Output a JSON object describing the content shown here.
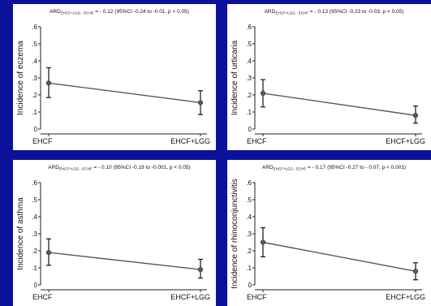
{
  "chart_data": [
    {
      "type": "line",
      "title": "ARD EHCF+LGG - ECHF = - 0.12 (95%CI -0.24 to -0.01, p < 0.05)",
      "annotation": {
        "ard_label": "ARD",
        "ard_subscript": "EHCF+LGG - ECHF",
        "ard_text": " = - 0.12 (95%CI -0.24 to -0.01, p < 0.05)"
      },
      "xlabel": "",
      "ylabel": "Incidence of eczema",
      "categories": [
        "EHCF",
        "EHCF+LGG"
      ],
      "yticks": [
        "0",
        ".1",
        ".2",
        ".3",
        ".4",
        ".5",
        ".6"
      ],
      "ylim": [
        0,
        0.6
      ],
      "values": [
        0.27,
        0.155
      ],
      "ci_lower": [
        0.185,
        0.085
      ],
      "ci_upper": [
        0.36,
        0.225
      ],
      "grid": false,
      "colors": {
        "line": "#5a5a5a",
        "marker": "#5a5a5a"
      }
    },
    {
      "type": "line",
      "title": "ARD EHCF+LGG - ECHF = - 0.13 (95%CI -0.23 to -0.03, p < 0.05)",
      "annotation": {
        "ard_label": "ARD",
        "ard_subscript": "EHCF+LGG - ECHF",
        "ard_text": " = - 0.13 (95%CI -0.23 to -0.03, p < 0.05)"
      },
      "xlabel": "",
      "ylabel": "Incidence of urticaria",
      "categories": [
        "EHCF",
        "EHCF+LGG"
      ],
      "yticks": [
        "0",
        ".1",
        ".2",
        ".3",
        ".4",
        ".5",
        ".6"
      ],
      "ylim": [
        0,
        0.6
      ],
      "values": [
        0.21,
        0.08
      ],
      "ci_lower": [
        0.13,
        0.035
      ],
      "ci_upper": [
        0.29,
        0.135
      ],
      "grid": false,
      "colors": {
        "line": "#5a5a5a",
        "marker": "#5a5a5a"
      }
    },
    {
      "type": "line",
      "title": "ARD EHCF+LGG - ECHF = - 0.10 (95%CI -0.19 to -0.001, p < 0.05)",
      "annotation": {
        "ard_label": "ARD",
        "ard_subscript": "EHCF+LGG - ECHF",
        "ard_text": " = - 0.10 (95%CI -0.19 to -0.001, p < 0.05)"
      },
      "xlabel": "",
      "ylabel": "Incidence of asthma",
      "categories": [
        "EHCF",
        "EHCF+LGG"
      ],
      "yticks": [
        "0",
        ".1",
        ".2",
        ".3",
        ".4",
        ".5",
        ".6"
      ],
      "ylim": [
        0,
        0.6
      ],
      "values": [
        0.19,
        0.09
      ],
      "ci_lower": [
        0.115,
        0.04
      ],
      "ci_upper": [
        0.27,
        0.15
      ],
      "grid": false,
      "colors": {
        "line": "#5a5a5a",
        "marker": "#5a5a5a"
      }
    },
    {
      "type": "line",
      "title": "ARD EHCF+LGG - ECHF = - 0.17 (95%CI -0.27 to - 0.07, p < 0.001)",
      "annotation": {
        "ard_label": "ARD",
        "ard_subscript": "EHCF+LGG - ECHF",
        "ard_text": " = - 0.17 (95%CI -0.27 to - 0.07, p < 0.001)"
      },
      "xlabel": "",
      "ylabel": "Incidence of rhinoconjunctivitis",
      "categories": [
        "EHCF",
        "EHCF+LGG"
      ],
      "yticks": [
        "0",
        ".1",
        ".2",
        ".3",
        ".4",
        ".5",
        ".6"
      ],
      "ylim": [
        0,
        0.6
      ],
      "values": [
        0.25,
        0.08
      ],
      "ci_lower": [
        0.165,
        0.03
      ],
      "ci_upper": [
        0.335,
        0.13
      ],
      "grid": false,
      "colors": {
        "line": "#5a5a5a",
        "marker": "#5a5a5a"
      }
    }
  ]
}
